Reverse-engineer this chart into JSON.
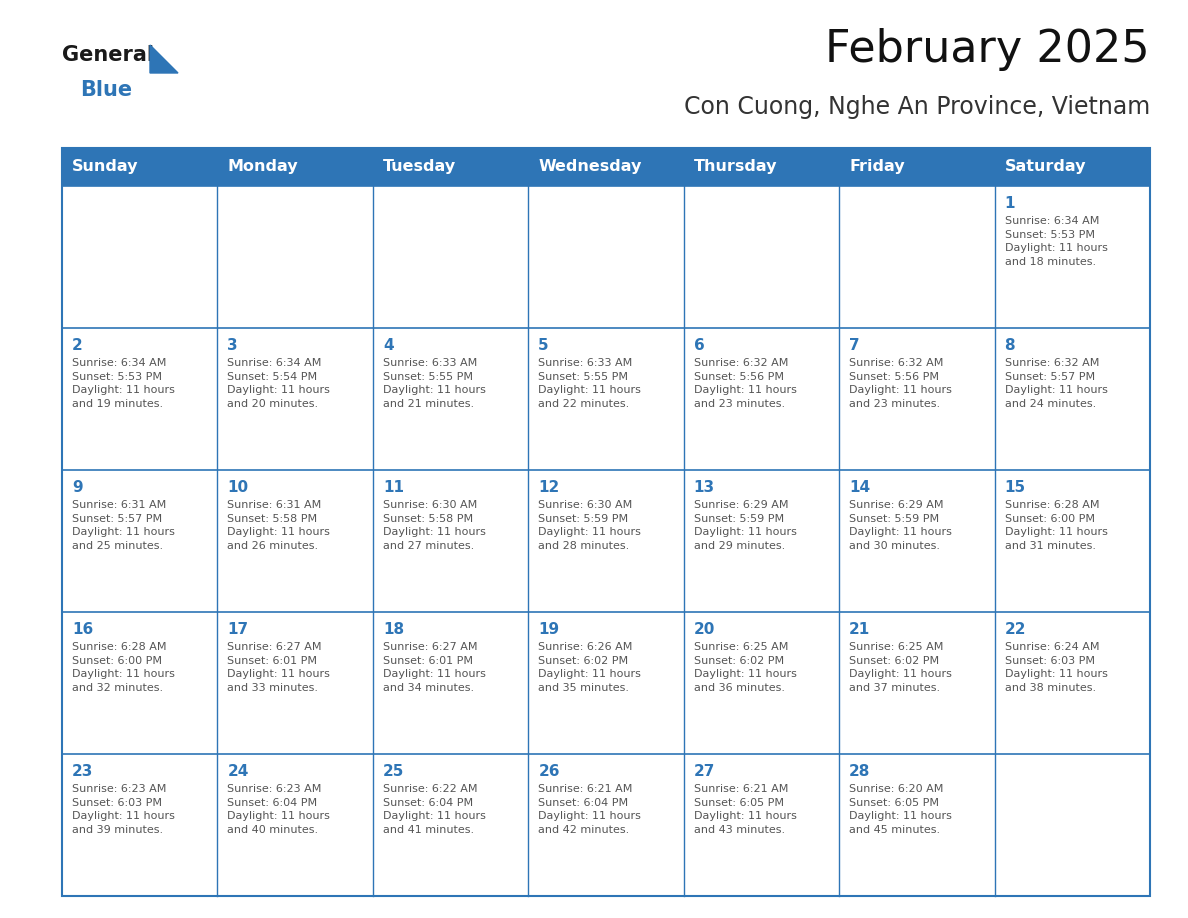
{
  "title": "February 2025",
  "subtitle": "Con Cuong, Nghe An Province, Vietnam",
  "header_bg": "#2E75B6",
  "header_text": "#FFFFFF",
  "day_num_color": "#2E75B6",
  "text_color": "#555555",
  "border_color": "#2E75B6",
  "days_of_week": [
    "Sunday",
    "Monday",
    "Tuesday",
    "Wednesday",
    "Thursday",
    "Friday",
    "Saturday"
  ],
  "weeks": [
    [
      {
        "day": "",
        "info": ""
      },
      {
        "day": "",
        "info": ""
      },
      {
        "day": "",
        "info": ""
      },
      {
        "day": "",
        "info": ""
      },
      {
        "day": "",
        "info": ""
      },
      {
        "day": "",
        "info": ""
      },
      {
        "day": "1",
        "info": "Sunrise: 6:34 AM\nSunset: 5:53 PM\nDaylight: 11 hours\nand 18 minutes."
      }
    ],
    [
      {
        "day": "2",
        "info": "Sunrise: 6:34 AM\nSunset: 5:53 PM\nDaylight: 11 hours\nand 19 minutes."
      },
      {
        "day": "3",
        "info": "Sunrise: 6:34 AM\nSunset: 5:54 PM\nDaylight: 11 hours\nand 20 minutes."
      },
      {
        "day": "4",
        "info": "Sunrise: 6:33 AM\nSunset: 5:55 PM\nDaylight: 11 hours\nand 21 minutes."
      },
      {
        "day": "5",
        "info": "Sunrise: 6:33 AM\nSunset: 5:55 PM\nDaylight: 11 hours\nand 22 minutes."
      },
      {
        "day": "6",
        "info": "Sunrise: 6:32 AM\nSunset: 5:56 PM\nDaylight: 11 hours\nand 23 minutes."
      },
      {
        "day": "7",
        "info": "Sunrise: 6:32 AM\nSunset: 5:56 PM\nDaylight: 11 hours\nand 23 minutes."
      },
      {
        "day": "8",
        "info": "Sunrise: 6:32 AM\nSunset: 5:57 PM\nDaylight: 11 hours\nand 24 minutes."
      }
    ],
    [
      {
        "day": "9",
        "info": "Sunrise: 6:31 AM\nSunset: 5:57 PM\nDaylight: 11 hours\nand 25 minutes."
      },
      {
        "day": "10",
        "info": "Sunrise: 6:31 AM\nSunset: 5:58 PM\nDaylight: 11 hours\nand 26 minutes."
      },
      {
        "day": "11",
        "info": "Sunrise: 6:30 AM\nSunset: 5:58 PM\nDaylight: 11 hours\nand 27 minutes."
      },
      {
        "day": "12",
        "info": "Sunrise: 6:30 AM\nSunset: 5:59 PM\nDaylight: 11 hours\nand 28 minutes."
      },
      {
        "day": "13",
        "info": "Sunrise: 6:29 AM\nSunset: 5:59 PM\nDaylight: 11 hours\nand 29 minutes."
      },
      {
        "day": "14",
        "info": "Sunrise: 6:29 AM\nSunset: 5:59 PM\nDaylight: 11 hours\nand 30 minutes."
      },
      {
        "day": "15",
        "info": "Sunrise: 6:28 AM\nSunset: 6:00 PM\nDaylight: 11 hours\nand 31 minutes."
      }
    ],
    [
      {
        "day": "16",
        "info": "Sunrise: 6:28 AM\nSunset: 6:00 PM\nDaylight: 11 hours\nand 32 minutes."
      },
      {
        "day": "17",
        "info": "Sunrise: 6:27 AM\nSunset: 6:01 PM\nDaylight: 11 hours\nand 33 minutes."
      },
      {
        "day": "18",
        "info": "Sunrise: 6:27 AM\nSunset: 6:01 PM\nDaylight: 11 hours\nand 34 minutes."
      },
      {
        "day": "19",
        "info": "Sunrise: 6:26 AM\nSunset: 6:02 PM\nDaylight: 11 hours\nand 35 minutes."
      },
      {
        "day": "20",
        "info": "Sunrise: 6:25 AM\nSunset: 6:02 PM\nDaylight: 11 hours\nand 36 minutes."
      },
      {
        "day": "21",
        "info": "Sunrise: 6:25 AM\nSunset: 6:02 PM\nDaylight: 11 hours\nand 37 minutes."
      },
      {
        "day": "22",
        "info": "Sunrise: 6:24 AM\nSunset: 6:03 PM\nDaylight: 11 hours\nand 38 minutes."
      }
    ],
    [
      {
        "day": "23",
        "info": "Sunrise: 6:23 AM\nSunset: 6:03 PM\nDaylight: 11 hours\nand 39 minutes."
      },
      {
        "day": "24",
        "info": "Sunrise: 6:23 AM\nSunset: 6:04 PM\nDaylight: 11 hours\nand 40 minutes."
      },
      {
        "day": "25",
        "info": "Sunrise: 6:22 AM\nSunset: 6:04 PM\nDaylight: 11 hours\nand 41 minutes."
      },
      {
        "day": "26",
        "info": "Sunrise: 6:21 AM\nSunset: 6:04 PM\nDaylight: 11 hours\nand 42 minutes."
      },
      {
        "day": "27",
        "info": "Sunrise: 6:21 AM\nSunset: 6:05 PM\nDaylight: 11 hours\nand 43 minutes."
      },
      {
        "day": "28",
        "info": "Sunrise: 6:20 AM\nSunset: 6:05 PM\nDaylight: 11 hours\nand 45 minutes."
      },
      {
        "day": "",
        "info": ""
      }
    ]
  ],
  "logo_general_color": "#1a1a1a",
  "logo_blue_color": "#2E75B6",
  "fig_width": 11.88,
  "fig_height": 9.18,
  "header_fontsize": 11.5,
  "day_num_fontsize": 11,
  "info_fontsize": 8,
  "title_fontsize": 32,
  "subtitle_fontsize": 17
}
